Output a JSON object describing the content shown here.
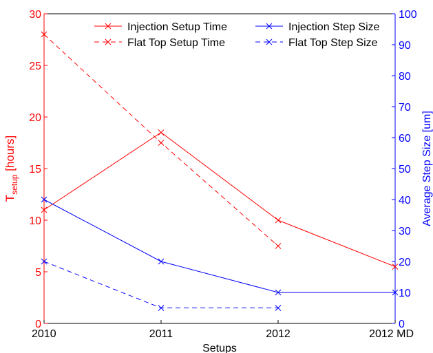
{
  "chart_data": {
    "type": "line",
    "categories": [
      "2010",
      "2011",
      "2012",
      "2012 MD"
    ],
    "xlabel": "Setups",
    "ylabel_left": {
      "base": "T",
      "sub": "setup",
      "unit": " [hours]"
    },
    "ylabel_right": "Average Step Size [um]",
    "ylim_left": [
      0,
      30
    ],
    "ylim_right": [
      0,
      100
    ],
    "yticks_left": [
      "0",
      "5",
      "10",
      "15",
      "20",
      "25",
      "30"
    ],
    "yticks_right": [
      "0",
      "10",
      "20",
      "30",
      "40",
      "50",
      "60",
      "70",
      "80",
      "90",
      "100"
    ],
    "grid": false,
    "legend_position": "top",
    "series": [
      {
        "name": "Injection Setup Time",
        "axis": "left",
        "style": "solid",
        "color": "#ff0000",
        "values": [
          11,
          18.5,
          10,
          5.5
        ]
      },
      {
        "name": "Flat Top Setup Time",
        "axis": "left",
        "style": "dashed",
        "color": "#ff0000",
        "values": [
          28,
          17.5,
          7.5,
          null
        ]
      },
      {
        "name": "Injection Step Size",
        "axis": "right",
        "style": "solid",
        "color": "#0000ff",
        "values": [
          40,
          20,
          10,
          10
        ]
      },
      {
        "name": "Flat Top Step Size",
        "axis": "right",
        "style": "dashed",
        "color": "#0000ff",
        "values": [
          20,
          5,
          5,
          null
        ]
      }
    ],
    "colors": {
      "left_axis": "#ff0000",
      "right_axis": "#0000ff",
      "bottom_axis": "#000000"
    }
  }
}
